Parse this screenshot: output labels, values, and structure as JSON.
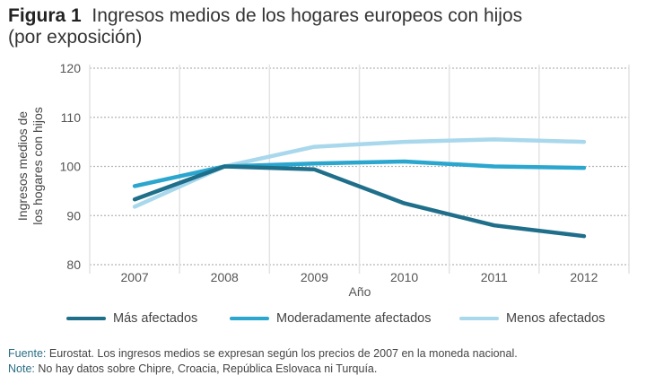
{
  "figure": {
    "label": "Figura 1",
    "title_line1": "Ingresos medios de los hogares europeos con hijos",
    "title_line2": "(por exposición)"
  },
  "chart_data": {
    "type": "line",
    "title": "Ingresos medios de los hogares europeos con hijos (por exposición)",
    "xlabel": "Año",
    "ylabel": "Ingresos medios de los hogares con hijos",
    "ylabel_lines": [
      "Ingresos medios de",
      "los hogares con hijos"
    ],
    "categories": [
      "2007",
      "2008",
      "2009",
      "2010",
      "2011",
      "2012"
    ],
    "ylim": [
      80,
      120
    ],
    "yticks": [
      80,
      90,
      100,
      110,
      120
    ],
    "grid": true,
    "legend_position": "bottom",
    "series": [
      {
        "name": "Más afectados",
        "color": "#1f6f8b",
        "values": [
          93.3,
          100,
          99.4,
          92.5,
          88.0,
          85.8
        ]
      },
      {
        "name": "Moderadamente afectados",
        "color": "#2aa6cf",
        "values": [
          96.0,
          100,
          100.6,
          101.0,
          100.0,
          99.7
        ]
      },
      {
        "name": "Menos afectados",
        "color": "#a9d8ec",
        "values": [
          91.8,
          100,
          104.0,
          105.0,
          105.5,
          105.0
        ]
      }
    ]
  },
  "footnotes": {
    "source_label": "Fuente:",
    "source_text": " Eurostat. Los ingresos medios se expresan según los precios de 2007 en la moneda nacional.",
    "note_label": "Note:",
    "note_text": " No hay datos sobre Chipre, Croacia, República Eslovaca ni Turquía."
  }
}
